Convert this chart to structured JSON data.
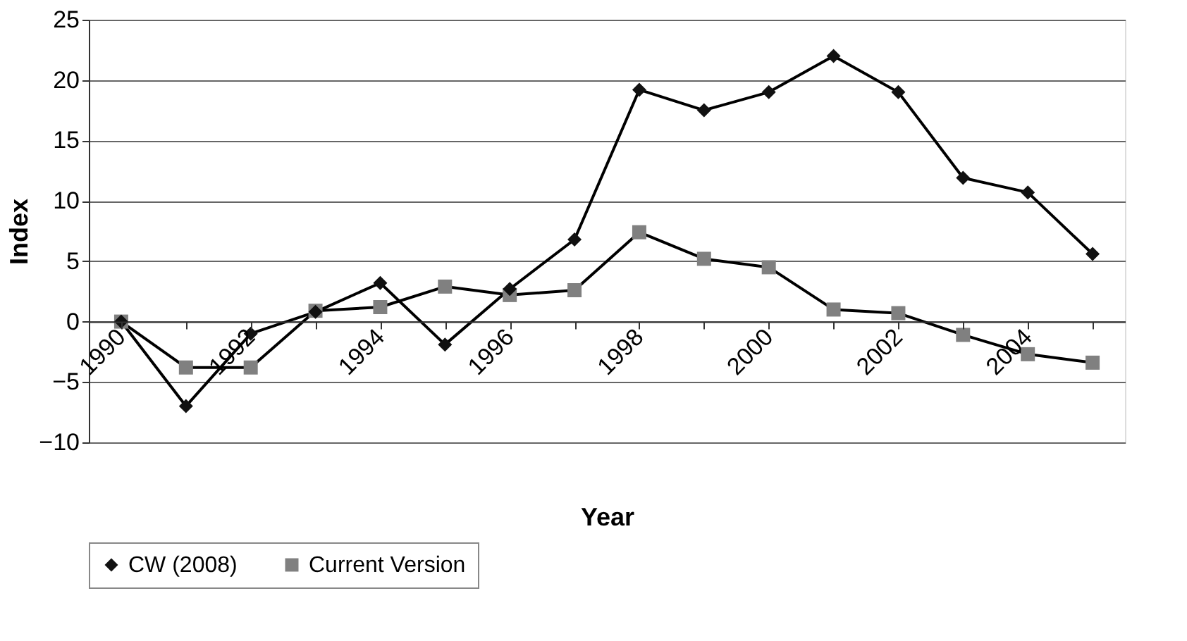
{
  "chart_data": {
    "type": "line",
    "xlabel": "Year",
    "ylabel": "Index",
    "categories": [
      "1990",
      null,
      "1992",
      null,
      "1994",
      null,
      "1996",
      null,
      "1998",
      null,
      "2000",
      null,
      "2002",
      null,
      "2004",
      null
    ],
    "series": [
      {
        "name": "CW (2008)",
        "color": "#111111",
        "marker": "diamond",
        "values": [
          0,
          -7.0,
          -1.0,
          0.8,
          3.2,
          -1.9,
          2.7,
          6.8,
          19.2,
          17.5,
          19.0,
          22.0,
          19.0,
          11.9,
          10.7,
          5.6
        ]
      },
      {
        "name": "Current Version",
        "color": "#808080",
        "marker": "square",
        "values": [
          0,
          -3.8,
          -3.8,
          0.9,
          1.2,
          2.9,
          2.2,
          2.6,
          7.4,
          5.2,
          4.5,
          1.0,
          0.7,
          -1.1,
          -2.7,
          -3.4
        ]
      }
    ],
    "ylim": [
      -10,
      25
    ],
    "yticks": [
      -10,
      -5,
      0,
      5,
      10,
      15,
      20,
      25
    ],
    "grid": "y",
    "legend": "bottom",
    "line_style": "solid"
  }
}
